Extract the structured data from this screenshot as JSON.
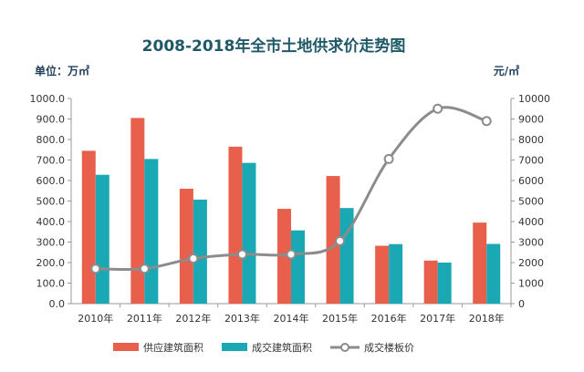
{
  "chart_data": {
    "type": "bar",
    "title": "2008-2018年全市土地供求价走势图",
    "left_unit": "单位：万㎡",
    "right_unit": "元/㎡",
    "categories": [
      "2010年",
      "2011年",
      "2012年",
      "2013年",
      "2014年",
      "2015年",
      "2016年",
      "2017年",
      "2018年"
    ],
    "left_axis": {
      "ylim": [
        0,
        1000
      ],
      "ticks": [
        "0.0",
        "100.0",
        "200.0",
        "300.0",
        "400.0",
        "500.0",
        "600.0",
        "700.0",
        "800.0",
        "900.0",
        "1000.0"
      ]
    },
    "right_axis": {
      "ylim": [
        0,
        10000
      ],
      "ticks": [
        "0",
        "1000",
        "2000",
        "3000",
        "4000",
        "5000",
        "6000",
        "7000",
        "8000",
        "9000",
        "10000"
      ]
    },
    "series": [
      {
        "name": "供应建筑面积",
        "type": "bar",
        "axis": "left",
        "color": "#e8604c",
        "values": [
          745,
          905,
          560,
          765,
          462,
          622,
          282,
          210,
          395
        ]
      },
      {
        "name": "成交建筑面积",
        "type": "bar",
        "axis": "left",
        "color": "#1ba8b5",
        "values": [
          628,
          705,
          507,
          686,
          357,
          466,
          290,
          200,
          291
        ]
      },
      {
        "name": "成交楼板价",
        "type": "line",
        "axis": "right",
        "color": "#8c8c8c",
        "values": [
          1700,
          1700,
          2200,
          2400,
          2400,
          3050,
          7050,
          9500,
          8900
        ]
      }
    ],
    "grid": false,
    "legend_position": "bottom"
  }
}
